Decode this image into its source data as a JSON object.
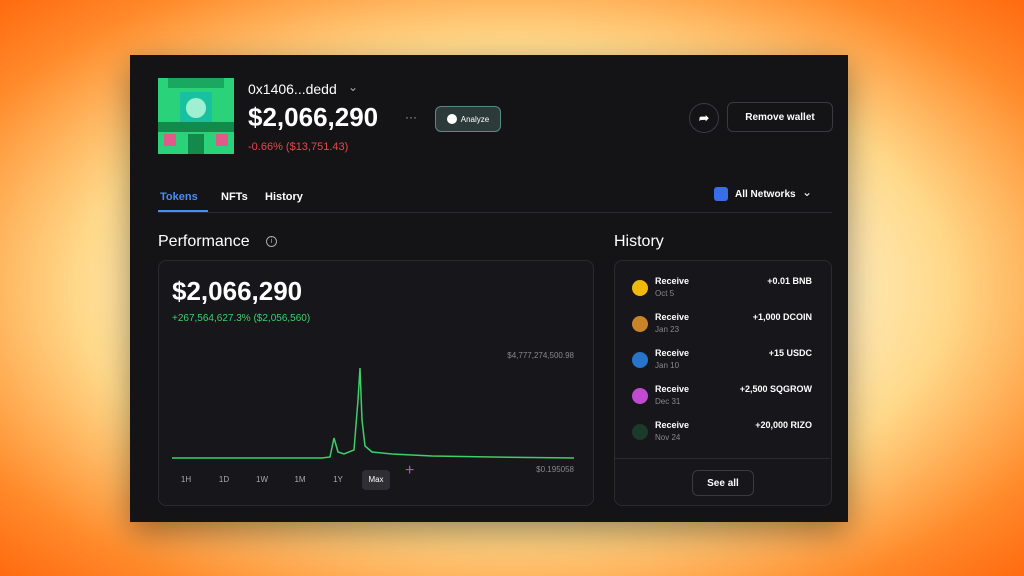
{
  "wallet": {
    "address": "0x1406...dedd",
    "balance": "$2,066,290",
    "change": "-0.66% ($13,751.43)",
    "analyze": "Analyze",
    "remove": "Remove wallet"
  },
  "tabs": [
    "Tokens",
    "NFTs",
    "History"
  ],
  "networks": "All Networks",
  "performance": {
    "title": "Performance",
    "value": "$2,066,290",
    "change": "+267,564,627.3% ($2,056,560)",
    "max_label": "$4,777,274,500.98",
    "min_label": "$0.195058",
    "ranges": [
      "1H",
      "1D",
      "1W",
      "1M",
      "1Y",
      "Max"
    ]
  },
  "history": {
    "title": "History",
    "items": [
      {
        "action": "Receive",
        "date": "Oct 5",
        "amount": "+0.01 BNB"
      },
      {
        "action": "Receive",
        "date": "Jan 23",
        "amount": "+1,000 DCOIN"
      },
      {
        "action": "Receive",
        "date": "Jan 10",
        "amount": "+15 USDC"
      },
      {
        "action": "Receive",
        "date": "Dec 31",
        "amount": "+2,500 SQGROW"
      },
      {
        "action": "Receive",
        "date": "Nov 24",
        "amount": "+20,000 RIZO"
      }
    ],
    "see_all": "See all"
  }
}
